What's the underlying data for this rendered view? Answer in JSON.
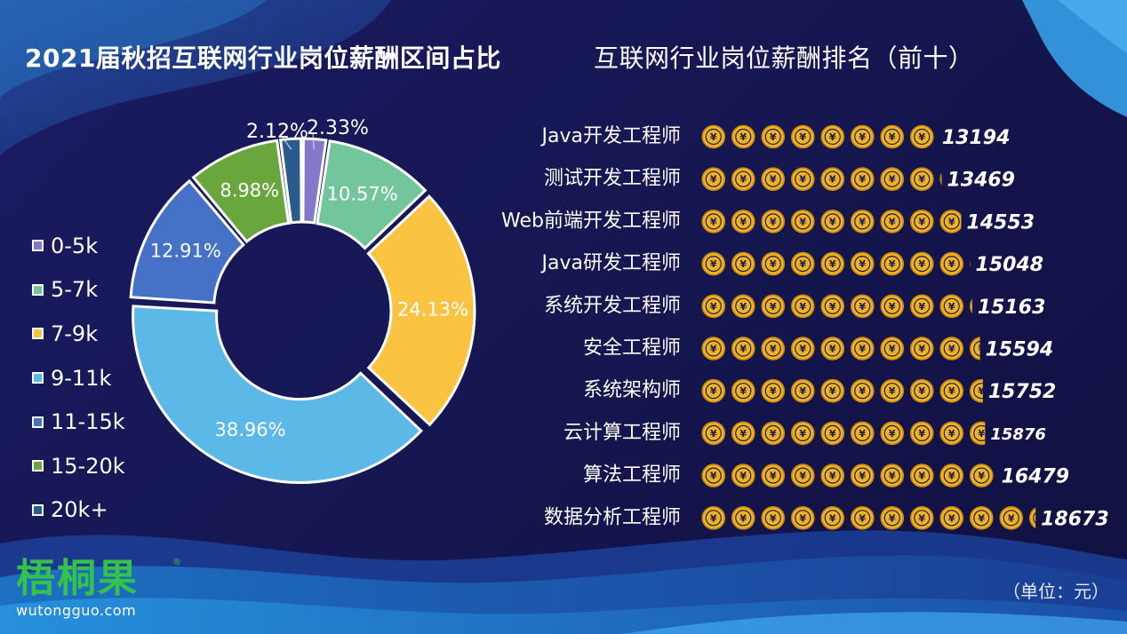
{
  "titles": {
    "left": "2021届秋招互联网行业岗位薪酬区间占比",
    "right": "互联网行业岗位薪酬排名（前十）"
  },
  "unit_label": "（单位：元）",
  "logo": {
    "cn": "梧桐果",
    "en": "wutongguo.com",
    "mark": "®"
  },
  "colors": {
    "background": "#171858",
    "coin_fill": "#f0b422",
    "coin_ring": "#c98c10",
    "logo_green": "#35c24a"
  },
  "chart_data": [
    {
      "type": "pie",
      "variant": "donut",
      "title": "2021届秋招互联网行业岗位薪酬区间占比",
      "legend_position": "left",
      "categories": [
        "0-5k",
        "5-7k",
        "7-9k",
        "9-11k",
        "11-15k",
        "15-20k",
        "20k+"
      ],
      "values": [
        2.33,
        10.57,
        24.13,
        38.96,
        12.91,
        8.98,
        2.12
      ],
      "labels": [
        "2.33%",
        "10.57%",
        "24.13%",
        "38.96%",
        "12.91%",
        "8.98%",
        "2.12%"
      ],
      "colors": [
        "#8478c8",
        "#73c59c",
        "#fbc342",
        "#5cb8e6",
        "#4571c7",
        "#6aa63e",
        "#2b5a8c"
      ]
    },
    {
      "type": "bar",
      "variant": "pictograph-horizontal",
      "title": "互联网行业岗位薪酬排名（前十）",
      "unit": "元",
      "categories": [
        "Java开发工程师",
        "测试开发工程师",
        "Web前端开发工程师",
        "Java研发工程师",
        "系统开发工程师",
        "安全工程师",
        "系统架构师",
        "云计算工程师",
        "算法工程师",
        "数据分析工程师"
      ],
      "values": [
        13194,
        13469,
        14553,
        15048,
        15163,
        15594,
        15752,
        15876,
        16479,
        18673
      ],
      "labels": [
        "13194",
        "13469",
        "14553",
        "15048",
        "15163",
        "15594",
        "15752",
        "15876",
        "16479",
        "18673"
      ],
      "symbol": "yuan-coin-icon"
    }
  ]
}
